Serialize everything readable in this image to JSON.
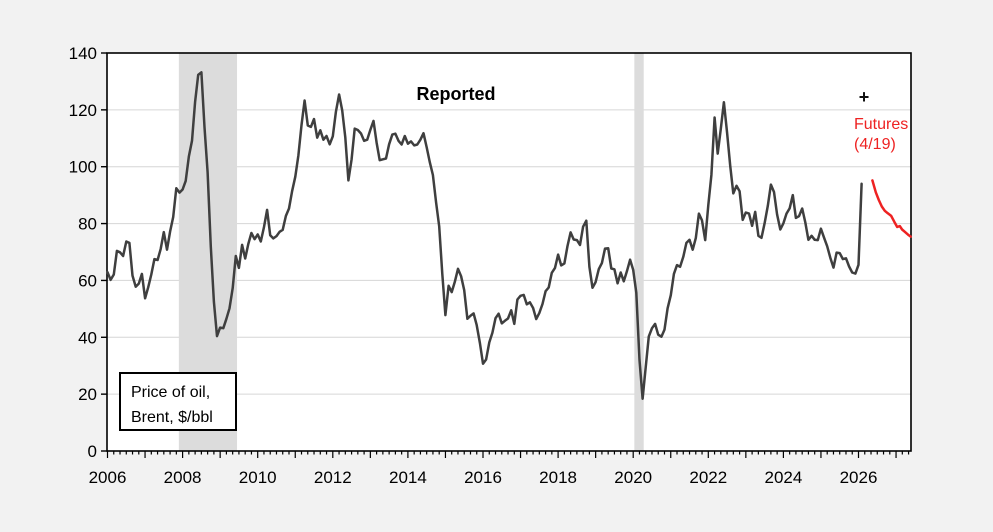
{
  "chart_data": {
    "type": "line",
    "title": "Price of oil, Brent, $/bbl",
    "x_axis": {
      "min": 2006,
      "max": 2027.42,
      "label_years": [
        2006,
        2008,
        2010,
        2012,
        2014,
        2016,
        2018,
        2020,
        2022,
        2024,
        2026
      ],
      "major_tick_interval_years": 1,
      "minor_ticks_per_year": 6
    },
    "y_axis": {
      "min": 0,
      "max": 140,
      "ticks": [
        0,
        20,
        40,
        60,
        80,
        100,
        120,
        140
      ],
      "gridline_values": [
        20,
        40,
        60,
        80,
        100,
        120
      ]
    },
    "recession_bands": [
      {
        "start": 2007.9,
        "end": 2009.45
      },
      {
        "start": 2020.03,
        "end": 2020.28
      }
    ],
    "series": [
      {
        "name": "Reported",
        "color": "#3f3f3f",
        "frequency": "monthly",
        "start_year": 2006,
        "start_month": 1,
        "values": [
          62.9,
          60.2,
          62.1,
          70.4,
          69.9,
          68.6,
          73.7,
          73.2,
          61.7,
          57.8,
          58.9,
          62.3,
          53.7,
          57.6,
          62.1,
          67.5,
          67.2,
          71.1,
          77.0,
          70.8,
          77.2,
          82.3,
          92.4,
          90.9,
          92.0,
          95.0,
          103.7,
          109.1,
          122.8,
          132.3,
          133.2,
          113.9,
          98.1,
          71.9,
          52.5,
          40.4,
          43.4,
          43.2,
          46.5,
          50.2,
          57.3,
          68.6,
          64.4,
          72.5,
          67.7,
          72.8,
          76.7,
          74.5,
          76.2,
          73.7,
          78.8,
          84.8,
          75.9,
          74.8,
          75.6,
          77.1,
          77.8,
          82.7,
          85.3,
          91.4,
          96.5,
          104.0,
          114.6,
          123.3,
          114.5,
          114.0,
          116.8,
          110.2,
          112.8,
          109.5,
          110.8,
          107.9,
          110.7,
          119.3,
          125.4,
          119.8,
          110.3,
          95.2,
          102.6,
          113.4,
          112.9,
          111.7,
          109.1,
          109.5,
          112.9,
          116.1,
          108.5,
          102.3,
          102.6,
          102.9,
          107.9,
          111.3,
          111.6,
          109.1,
          107.8,
          110.8,
          108.1,
          108.9,
          107.5,
          107.8,
          109.5,
          111.8,
          106.8,
          101.6,
          97.1,
          87.4,
          79.0,
          62.3,
          47.8,
          58.1,
          55.9,
          59.5,
          64.1,
          61.5,
          56.6,
          46.5,
          47.6,
          48.4,
          44.3,
          38.0,
          30.7,
          32.2,
          38.2,
          41.6,
          46.7,
          48.3,
          44.9,
          45.8,
          46.6,
          49.5,
          44.7,
          53.3,
          54.6,
          54.9,
          51.6,
          52.3,
          50.3,
          46.4,
          48.5,
          51.7,
          56.2,
          57.5,
          62.7,
          64.4,
          69.1,
          65.3,
          66.0,
          72.1,
          76.9,
          74.4,
          74.2,
          72.5,
          78.9,
          81.0,
          64.8,
          57.4,
          59.4,
          64.0,
          66.1,
          71.2,
          71.3,
          64.2,
          63.9,
          59.0,
          62.8,
          59.7,
          63.2,
          67.3,
          63.7,
          55.7,
          32.0,
          18.4,
          29.4,
          40.3,
          43.2,
          44.7,
          40.9,
          40.2,
          42.7,
          50.2,
          54.8,
          62.3,
          65.4,
          64.8,
          68.3,
          73.2,
          74.3,
          70.8,
          74.9,
          83.5,
          81.1,
          74.2,
          86.5,
          97.1,
          117.3,
          104.6,
          113.3,
          122.7,
          111.9,
          100.4,
          90.6,
          93.3,
          91.4,
          81.3,
          83.9,
          83.5,
          79.2,
          84.1,
          75.7,
          75.0,
          80.1,
          86.2,
          93.7,
          91.1,
          83.2,
          77.9,
          80.1,
          83.5,
          85.4,
          90.0,
          82.0,
          82.6,
          85.3,
          80.4,
          74.3,
          75.7,
          74.3,
          74.2,
          78.2,
          75.0,
          72.0,
          68.0,
          64.5,
          69.8,
          69.6,
          67.5,
          67.8,
          64.9,
          62.8,
          62.4,
          65.5,
          94.0
        ]
      },
      {
        "name": "Futures (4/19)",
        "color": "#ee2222",
        "frequency": "points",
        "points": [
          [
            2026.37,
            95.2
          ],
          [
            2026.46,
            91.0
          ],
          [
            2026.54,
            88.3
          ],
          [
            2026.62,
            86.0
          ],
          [
            2026.7,
            84.5
          ],
          [
            2026.78,
            83.6
          ],
          [
            2026.87,
            82.7
          ],
          [
            2026.95,
            80.7
          ],
          [
            2027.03,
            78.8
          ],
          [
            2027.1,
            79.1
          ],
          [
            2027.16,
            77.9
          ],
          [
            2027.24,
            77.0
          ],
          [
            2027.32,
            76.1
          ],
          [
            2027.39,
            75.4
          ]
        ]
      }
    ]
  },
  "annotations": {
    "reported_label": "Reported",
    "plus_marker": "+",
    "futures_label_line1": "Futures",
    "futures_label_line2": "(4/19)",
    "legend_line1": "Price of oil,",
    "legend_line2": "Brent, $/bbl"
  },
  "colors": {
    "outer_background": "#f2f2f2",
    "plot_background": "#ffffff",
    "gridline": "#d6d6d6",
    "recession_band": "#dcdcdc",
    "axis": "#000000",
    "reported_line": "#3f3f3f",
    "futures_line": "#ee2222",
    "futures_text": "#ee2222"
  }
}
